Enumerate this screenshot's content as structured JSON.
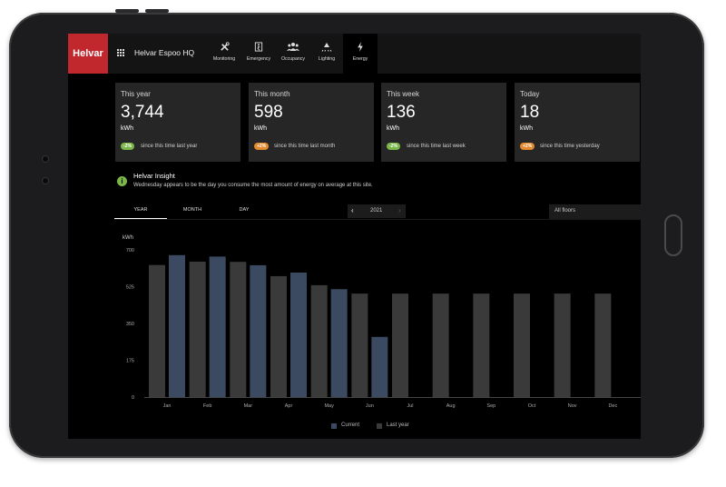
{
  "header": {
    "logo": "Helvar",
    "site": "Helvar Espoo HQ",
    "nav": [
      {
        "label": "Monitoring",
        "icon": "tools-icon"
      },
      {
        "label": "Emergency",
        "icon": "emergency-exit-icon"
      },
      {
        "label": "Occupancy",
        "icon": "people-icon"
      },
      {
        "label": "Lighting",
        "icon": "light-icon"
      },
      {
        "label": "Energy",
        "icon": "lightning-icon"
      }
    ],
    "active_nav": "Energy"
  },
  "cards": [
    {
      "title": "This year",
      "value": "3,744",
      "unit": "kWh",
      "change": "-2%",
      "change_color": "#7ab648",
      "note": "since this time last year"
    },
    {
      "title": "This month",
      "value": "598",
      "unit": "kWh",
      "change": "+2%",
      "change_color": "#e38a2e",
      "note": "since this time last month"
    },
    {
      "title": "This week",
      "value": "136",
      "unit": "kWh",
      "change": "-2%",
      "change_color": "#7ab648",
      "note": "since this time last week"
    },
    {
      "title": "Today",
      "value": "18",
      "unit": "kWh",
      "change": "+2%",
      "change_color": "#e38a2e",
      "note": "since this time yesterday"
    }
  ],
  "insight": {
    "title": "Helvar Insight",
    "message": "Wednesday appears to be the day you consume the most amount of energy on average at this site."
  },
  "tabs": [
    "YEAR",
    "MONTH",
    "DAY"
  ],
  "active_tab": "YEAR",
  "year_selector": {
    "value": "2021",
    "prev": "‹",
    "next": "›"
  },
  "floor_select": {
    "value": "All floors"
  },
  "legend": {
    "current": "Current",
    "last_year": "Last year"
  },
  "colors": {
    "current": "#3b4a60",
    "last_year": "#3a3a3a",
    "accent": "#c0282e"
  },
  "chart_data": {
    "type": "bar",
    "ylabel": "kWh",
    "ylim": [
      0,
      700
    ],
    "yticks": [
      0,
      175,
      350,
      525,
      700
    ],
    "categories": [
      "Jan",
      "Feb",
      "Mar",
      "Apr",
      "May",
      "Jun",
      "Jul",
      "Aug",
      "Sep",
      "Oct",
      "Nov",
      "Dec"
    ],
    "series": [
      {
        "name": "Current",
        "values": [
          675,
          668,
          627,
          592,
          513,
          286,
          null,
          null,
          null,
          null,
          null,
          null
        ]
      },
      {
        "name": "Last year",
        "values": [
          628,
          644,
          643,
          575,
          532,
          492,
          492,
          492,
          492,
          492,
          492,
          492
        ]
      }
    ]
  }
}
